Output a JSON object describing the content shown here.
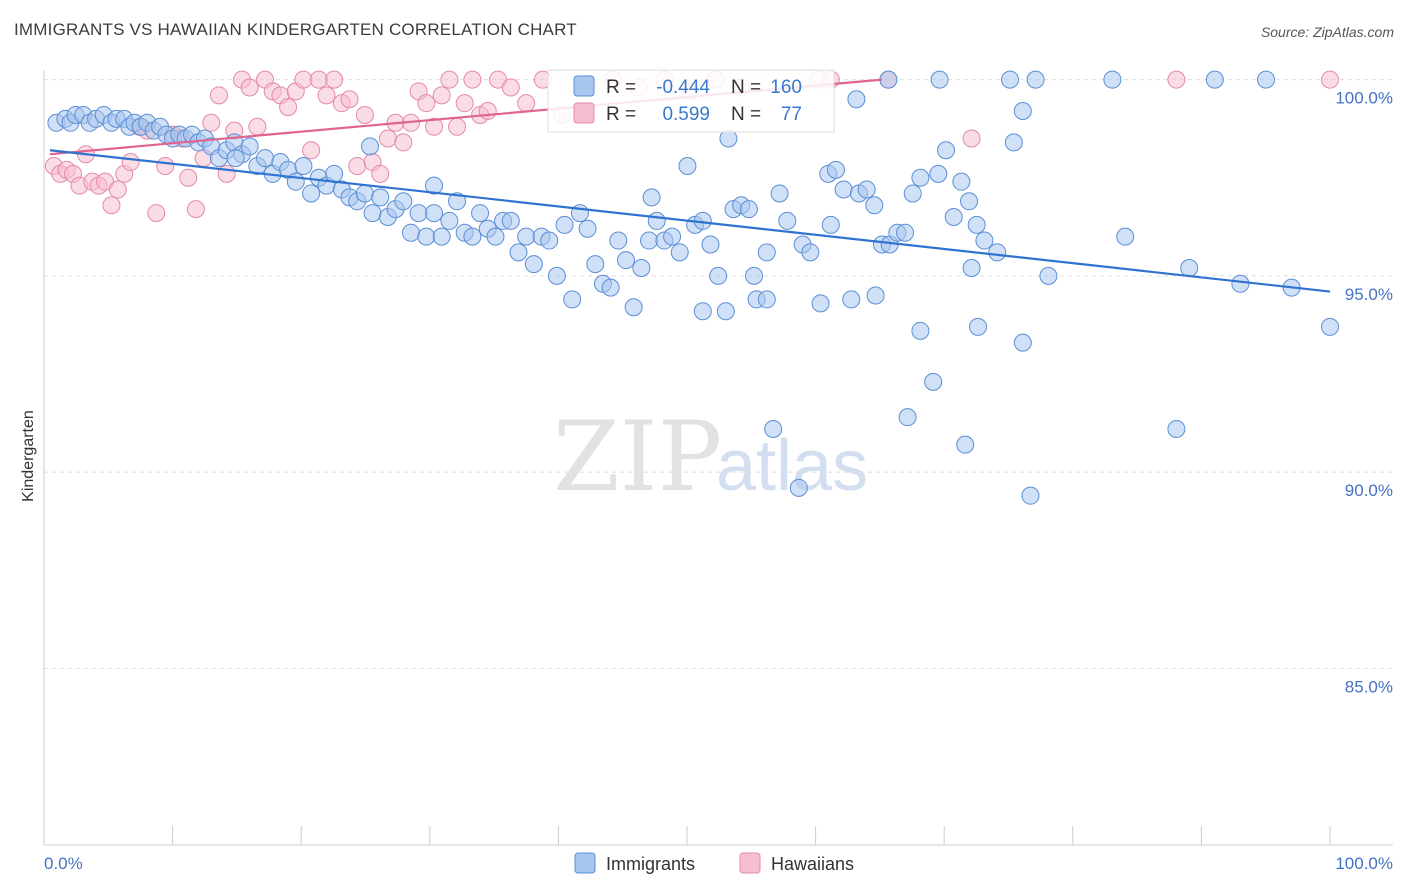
{
  "header": {
    "title": "IMMIGRANTS VS HAWAIIAN KINDERGARTEN CORRELATION CHART",
    "source": "Source: ZipAtlas.com"
  },
  "watermark": {
    "zip": "ZIP",
    "atlas": "atlas"
  },
  "colors": {
    "immigrants_fill": "#a9c6ef",
    "immigrants_stroke": "#5b8fd6",
    "immigrants_line": "#2f72d0",
    "hawaiians_fill": "#f6bfd0",
    "hawaiians_stroke": "#e58aa8",
    "hawaiians_line": "#e0648f",
    "tick_text": "#4472c4",
    "grid": "#dddddd"
  },
  "stats": {
    "immigrants": {
      "r_label": "R =",
      "r_value": "-0.444",
      "n_label": "N =",
      "n_value": "160"
    },
    "hawaiians": {
      "r_label": "R =",
      "r_value": "0.599",
      "n_label": "N =",
      "n_value": "77"
    }
  },
  "legend": {
    "immigrants": "Immigrants",
    "hawaiians": "Hawaiians"
  },
  "chart_data": {
    "type": "scatter",
    "title": "IMMIGRANTS VS HAWAIIAN KINDERGARTEN CORRELATION CHART",
    "xlabel": "",
    "ylabel": "Kindergarten",
    "xlim": [
      0,
      100
    ],
    "ylim": [
      80.5,
      100.5
    ],
    "x_tick_labels": [
      "0.0%",
      "100.0%"
    ],
    "y_ticks": [
      100,
      95,
      90,
      85
    ],
    "y_tick_labels": [
      "100.0%",
      "95.0%",
      "90.0%",
      "85.0%"
    ],
    "grid": true,
    "series": [
      {
        "name": "Immigrants",
        "r": -0.444,
        "n": 160,
        "trend": {
          "x": [
            0,
            100
          ],
          "y": [
            98.2,
            94.6
          ]
        },
        "points": [
          [
            0.5,
            98.9
          ],
          [
            1.2,
            99.0
          ],
          [
            1.6,
            98.9
          ],
          [
            2,
            99.1
          ],
          [
            2.6,
            99.1
          ],
          [
            3.1,
            98.9
          ],
          [
            3.6,
            99.0
          ],
          [
            4.2,
            99.1
          ],
          [
            4.8,
            98.9
          ],
          [
            5.2,
            99.0
          ],
          [
            5.8,
            99.0
          ],
          [
            6.2,
            98.8
          ],
          [
            6.6,
            98.9
          ],
          [
            7.1,
            98.8
          ],
          [
            7.6,
            98.9
          ],
          [
            8.1,
            98.7
          ],
          [
            8.6,
            98.8
          ],
          [
            9.1,
            98.6
          ],
          [
            9.6,
            98.5
          ],
          [
            10.1,
            98.6
          ],
          [
            10.6,
            98.5
          ],
          [
            11.1,
            98.6
          ],
          [
            11.6,
            98.4
          ],
          [
            12.1,
            98.5
          ],
          [
            12.6,
            98.3
          ],
          [
            13.2,
            98.0
          ],
          [
            13.8,
            98.2
          ],
          [
            14.4,
            98.4
          ],
          [
            15,
            98.1
          ],
          [
            15.6,
            98.3
          ],
          [
            16.2,
            97.8
          ],
          [
            16.8,
            98.0
          ],
          [
            17.4,
            97.6
          ],
          [
            18,
            97.9
          ],
          [
            18.6,
            97.7
          ],
          [
            19.2,
            97.4
          ],
          [
            19.8,
            97.8
          ],
          [
            20.4,
            97.1
          ],
          [
            21,
            97.5
          ],
          [
            21.6,
            97.3
          ],
          [
            22.2,
            97.6
          ],
          [
            22.8,
            97.2
          ],
          [
            23.4,
            97.0
          ],
          [
            24,
            96.9
          ],
          [
            24.6,
            97.1
          ],
          [
            25.2,
            96.6
          ],
          [
            25.8,
            97.0
          ],
          [
            26.4,
            96.5
          ],
          [
            27,
            96.7
          ],
          [
            27.6,
            96.9
          ],
          [
            28.2,
            96.1
          ],
          [
            28.8,
            96.6
          ],
          [
            29.4,
            96.0
          ],
          [
            30,
            96.6
          ],
          [
            30.6,
            96.0
          ],
          [
            31.2,
            96.4
          ],
          [
            31.8,
            96.9
          ],
          [
            32.4,
            96.1
          ],
          [
            33,
            96.0
          ],
          [
            33.6,
            96.6
          ],
          [
            34.2,
            96.2
          ],
          [
            34.8,
            96.0
          ],
          [
            35.4,
            96.4
          ],
          [
            36,
            96.4
          ],
          [
            36.6,
            95.6
          ],
          [
            37.2,
            96.0
          ],
          [
            37.8,
            95.3
          ],
          [
            38.4,
            96.0
          ],
          [
            39,
            95.9
          ],
          [
            39.6,
            95.0
          ],
          [
            40.2,
            96.3
          ],
          [
            40.8,
            94.4
          ],
          [
            41.4,
            96.6
          ],
          [
            42,
            96.2
          ],
          [
            42.6,
            95.3
          ],
          [
            43.2,
            94.8
          ],
          [
            43.8,
            94.7
          ],
          [
            44.4,
            95.9
          ],
          [
            45,
            95.4
          ],
          [
            45.6,
            94.2
          ],
          [
            46.2,
            95.2
          ],
          [
            46.8,
            95.9
          ],
          [
            47.4,
            96.4
          ],
          [
            48,
            95.9
          ],
          [
            48.6,
            96.0
          ],
          [
            49.2,
            95.6
          ],
          [
            49.8,
            97.8
          ],
          [
            50.4,
            96.3
          ],
          [
            51,
            96.4
          ],
          [
            51.6,
            95.8
          ],
          [
            52.2,
            95.0
          ],
          [
            52.8,
            94.1
          ],
          [
            53.4,
            96.7
          ],
          [
            54,
            96.8
          ],
          [
            54.6,
            96.7
          ],
          [
            55.2,
            94.4
          ],
          [
            56,
            95.6
          ],
          [
            57,
            97.1
          ],
          [
            57.6,
            96.4
          ],
          [
            58.8,
            95.8
          ],
          [
            59.4,
            95.6
          ],
          [
            60.2,
            94.3
          ],
          [
            60.8,
            97.6
          ],
          [
            61.4,
            97.7
          ],
          [
            62,
            97.2
          ],
          [
            62.6,
            94.4
          ],
          [
            63.2,
            97.1
          ],
          [
            63.8,
            97.2
          ],
          [
            64.4,
            96.8
          ],
          [
            65,
            95.8
          ],
          [
            65.6,
            95.8
          ],
          [
            66.2,
            96.1
          ],
          [
            66.8,
            96.1
          ],
          [
            67.4,
            97.1
          ],
          [
            68,
            97.5
          ],
          [
            69.4,
            97.6
          ],
          [
            70,
            98.2
          ],
          [
            70.6,
            96.5
          ],
          [
            71.2,
            97.4
          ],
          [
            71.8,
            96.9
          ],
          [
            72.4,
            96.3
          ],
          [
            73,
            95.9
          ],
          [
            74,
            95.6
          ],
          [
            75.3,
            98.4
          ],
          [
            76,
            99.2
          ],
          [
            55,
            95.0
          ],
          [
            67,
            91.4
          ],
          [
            71.5,
            90.7
          ],
          [
            76.6,
            89.4
          ],
          [
            56.5,
            91.1
          ],
          [
            58.5,
            89.6
          ],
          [
            56,
            94.4
          ],
          [
            64.5,
            94.5
          ],
          [
            51,
            94.1
          ],
          [
            68,
            93.6
          ],
          [
            76,
            93.3
          ],
          [
            88,
            91.1
          ],
          [
            100,
            93.7
          ],
          [
            72.5,
            93.7
          ],
          [
            69,
            92.3
          ],
          [
            65.5,
            100.0
          ],
          [
            69.5,
            100.0
          ],
          [
            75,
            100.0
          ],
          [
            77,
            100.0
          ],
          [
            83,
            100.0
          ],
          [
            91,
            100.0
          ],
          [
            95,
            100.0
          ],
          [
            63,
            99.5
          ],
          [
            25,
            98.3
          ],
          [
            14.5,
            98.0
          ],
          [
            30,
            97.3
          ],
          [
            47,
            97.0
          ],
          [
            53,
            98.5
          ],
          [
            61,
            96.3
          ],
          [
            78,
            95.0
          ],
          [
            72,
            95.2
          ],
          [
            84,
            96.0
          ],
          [
            89,
            95.2
          ],
          [
            93,
            94.8
          ],
          [
            97,
            94.7
          ]
        ]
      },
      {
        "name": "Hawaiians",
        "r": 0.599,
        "n": 77,
        "trend": {
          "x": [
            0,
            65
          ],
          "y": [
            98.1,
            100.0
          ]
        },
        "points": [
          [
            0.3,
            97.8
          ],
          [
            0.8,
            97.6
          ],
          [
            1.3,
            97.7
          ],
          [
            1.8,
            97.6
          ],
          [
            2.3,
            97.3
          ],
          [
            2.8,
            98.1
          ],
          [
            3.3,
            97.4
          ],
          [
            3.8,
            97.3
          ],
          [
            4.3,
            97.4
          ],
          [
            4.8,
            96.8
          ],
          [
            5.3,
            97.2
          ],
          [
            5.8,
            97.6
          ],
          [
            6.3,
            97.9
          ],
          [
            7,
            98.8
          ],
          [
            7.6,
            98.7
          ],
          [
            8.3,
            96.6
          ],
          [
            9,
            97.8
          ],
          [
            9.6,
            98.6
          ],
          [
            10.3,
            98.5
          ],
          [
            10.8,
            97.5
          ],
          [
            11.4,
            96.7
          ],
          [
            12,
            98.0
          ],
          [
            12.6,
            98.9
          ],
          [
            13.2,
            99.6
          ],
          [
            13.8,
            97.6
          ],
          [
            14.4,
            98.7
          ],
          [
            15,
            100.0
          ],
          [
            15.6,
            99.8
          ],
          [
            16.2,
            98.8
          ],
          [
            16.8,
            100.0
          ],
          [
            17.4,
            99.7
          ],
          [
            18,
            99.6
          ],
          [
            18.6,
            99.3
          ],
          [
            19.2,
            99.7
          ],
          [
            19.8,
            100.0
          ],
          [
            20.4,
            98.2
          ],
          [
            21,
            100.0
          ],
          [
            21.6,
            99.6
          ],
          [
            22.2,
            100.0
          ],
          [
            22.8,
            99.4
          ],
          [
            23.4,
            99.5
          ],
          [
            24,
            97.8
          ],
          [
            24.6,
            99.1
          ],
          [
            25.2,
            97.9
          ],
          [
            25.8,
            97.6
          ],
          [
            26.4,
            98.5
          ],
          [
            27,
            98.9
          ],
          [
            27.6,
            98.4
          ],
          [
            28.2,
            98.9
          ],
          [
            28.8,
            99.7
          ],
          [
            29.4,
            99.4
          ],
          [
            30,
            98.8
          ],
          [
            30.6,
            99.6
          ],
          [
            31.2,
            100.0
          ],
          [
            31.8,
            98.8
          ],
          [
            32.4,
            99.4
          ],
          [
            33,
            100.0
          ],
          [
            33.6,
            99.1
          ],
          [
            34.2,
            99.2
          ],
          [
            35,
            100.0
          ],
          [
            36,
            99.8
          ],
          [
            37.2,
            99.4
          ],
          [
            38.5,
            100.0
          ],
          [
            40,
            99.1
          ],
          [
            42,
            99.9
          ],
          [
            44,
            100.0
          ],
          [
            46,
            99.8
          ],
          [
            48,
            100.0
          ],
          [
            50,
            99.7
          ],
          [
            52,
            100.0
          ],
          [
            54,
            99.8
          ],
          [
            60,
            100.0
          ],
          [
            61,
            100.0
          ],
          [
            65.5,
            100.0
          ],
          [
            72,
            98.5
          ],
          [
            88,
            100.0
          ],
          [
            100,
            100.0
          ]
        ]
      }
    ]
  }
}
